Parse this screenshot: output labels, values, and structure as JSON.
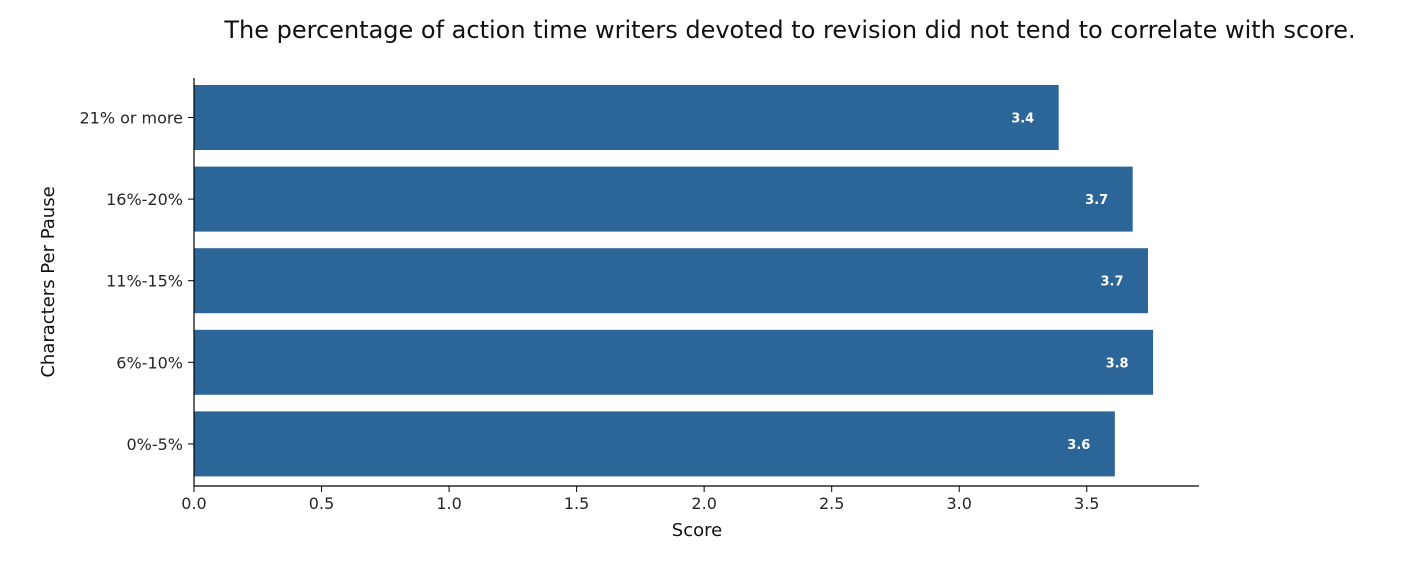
{
  "chart_data": {
    "type": "bar",
    "orientation": "horizontal",
    "title": "The percentage of action time writers devoted to revision did not tend to correlate with score.",
    "xlabel": "Score",
    "ylabel": "Characters Per Pause",
    "categories": [
      "21% or more",
      "16%-20%",
      "11%-15%",
      "6%-10%",
      "0%-5%"
    ],
    "values": [
      3.39,
      3.68,
      3.74,
      3.76,
      3.61
    ],
    "data_labels": [
      "3.4",
      "3.7",
      "3.7",
      "3.8",
      "3.6"
    ],
    "xlim": [
      0,
      3.94
    ],
    "xticks": [
      0.0,
      0.5,
      1.0,
      1.5,
      2.0,
      2.5,
      3.0,
      3.5
    ],
    "xtick_labels": [
      "0.0",
      "0.5",
      "1.0",
      "1.5",
      "2.0",
      "2.5",
      "3.0",
      "3.5"
    ],
    "grid": false,
    "legend": "none",
    "colors": {
      "bar": "#2c6699",
      "label": "#ffffff",
      "axis": "#000000",
      "text": "#262626"
    }
  }
}
